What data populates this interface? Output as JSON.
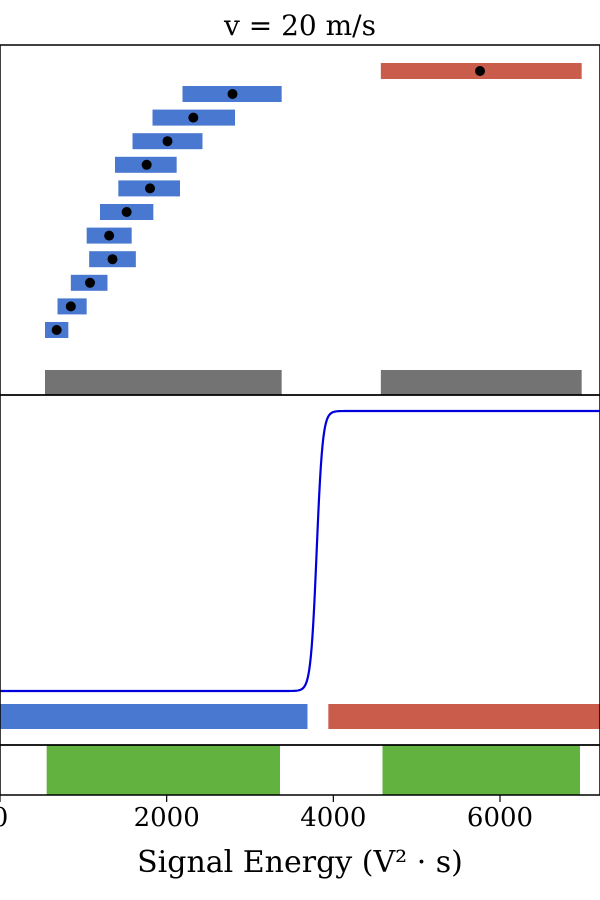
{
  "figure": {
    "title": "v = 20 m/s",
    "xlabel": "Signal Energy (V² · s)",
    "colors": {
      "blue_bar": "#4878cf",
      "red_bar": "#c95c4a",
      "gray_bar": "#737373",
      "green_fill": "#61b23f",
      "curve": "#0000dd",
      "point": "#000000"
    }
  },
  "chart_data": [
    {
      "type": "range-bar",
      "panel": "top",
      "xlim": [
        0,
        7200
      ],
      "blue_ranges": [
        {
          "x0": 540,
          "x1": 820,
          "point": 680
        },
        {
          "x0": 690,
          "x1": 1040,
          "point": 850
        },
        {
          "x0": 850,
          "x1": 1290,
          "point": 1080
        },
        {
          "x0": 1070,
          "x1": 1630,
          "point": 1350
        },
        {
          "x0": 1040,
          "x1": 1580,
          "point": 1310
        },
        {
          "x0": 1200,
          "x1": 1840,
          "point": 1520
        },
        {
          "x0": 1420,
          "x1": 2160,
          "point": 1800
        },
        {
          "x0": 1380,
          "x1": 2120,
          "point": 1760
        },
        {
          "x0": 1590,
          "x1": 2430,
          "point": 2010
        },
        {
          "x0": 1830,
          "x1": 2820,
          "point": 2320
        },
        {
          "x0": 2190,
          "x1": 3380,
          "point": 2790
        }
      ],
      "red_range": {
        "x0": 4570,
        "x1": 6980,
        "point": 5760
      },
      "gray_ranges": [
        {
          "x0": 540,
          "x1": 3380
        },
        {
          "x0": 4570,
          "x1": 6980
        }
      ]
    },
    {
      "type": "line",
      "panel": "middle",
      "xlim": [
        0,
        7200
      ],
      "curve": {
        "low": 0.0,
        "high": 1.0,
        "midpoint": 3800,
        "steepness": 0.028
      },
      "blue_segment": {
        "x0": 0,
        "x1": 3690
      },
      "red_segment": {
        "x0": 3940,
        "x1": 7200
      }
    },
    {
      "type": "area",
      "panel": "bottom",
      "xlim": [
        0,
        7200
      ],
      "xticks": [
        {
          "value": 0,
          "label": "0"
        },
        {
          "value": 2000,
          "label": "2000"
        },
        {
          "value": 4000,
          "label": "4000"
        },
        {
          "value": 6000,
          "label": "6000"
        }
      ],
      "green_regions": [
        {
          "x0": 560,
          "x1": 3360
        },
        {
          "x0": 4590,
          "x1": 6960
        }
      ]
    }
  ]
}
